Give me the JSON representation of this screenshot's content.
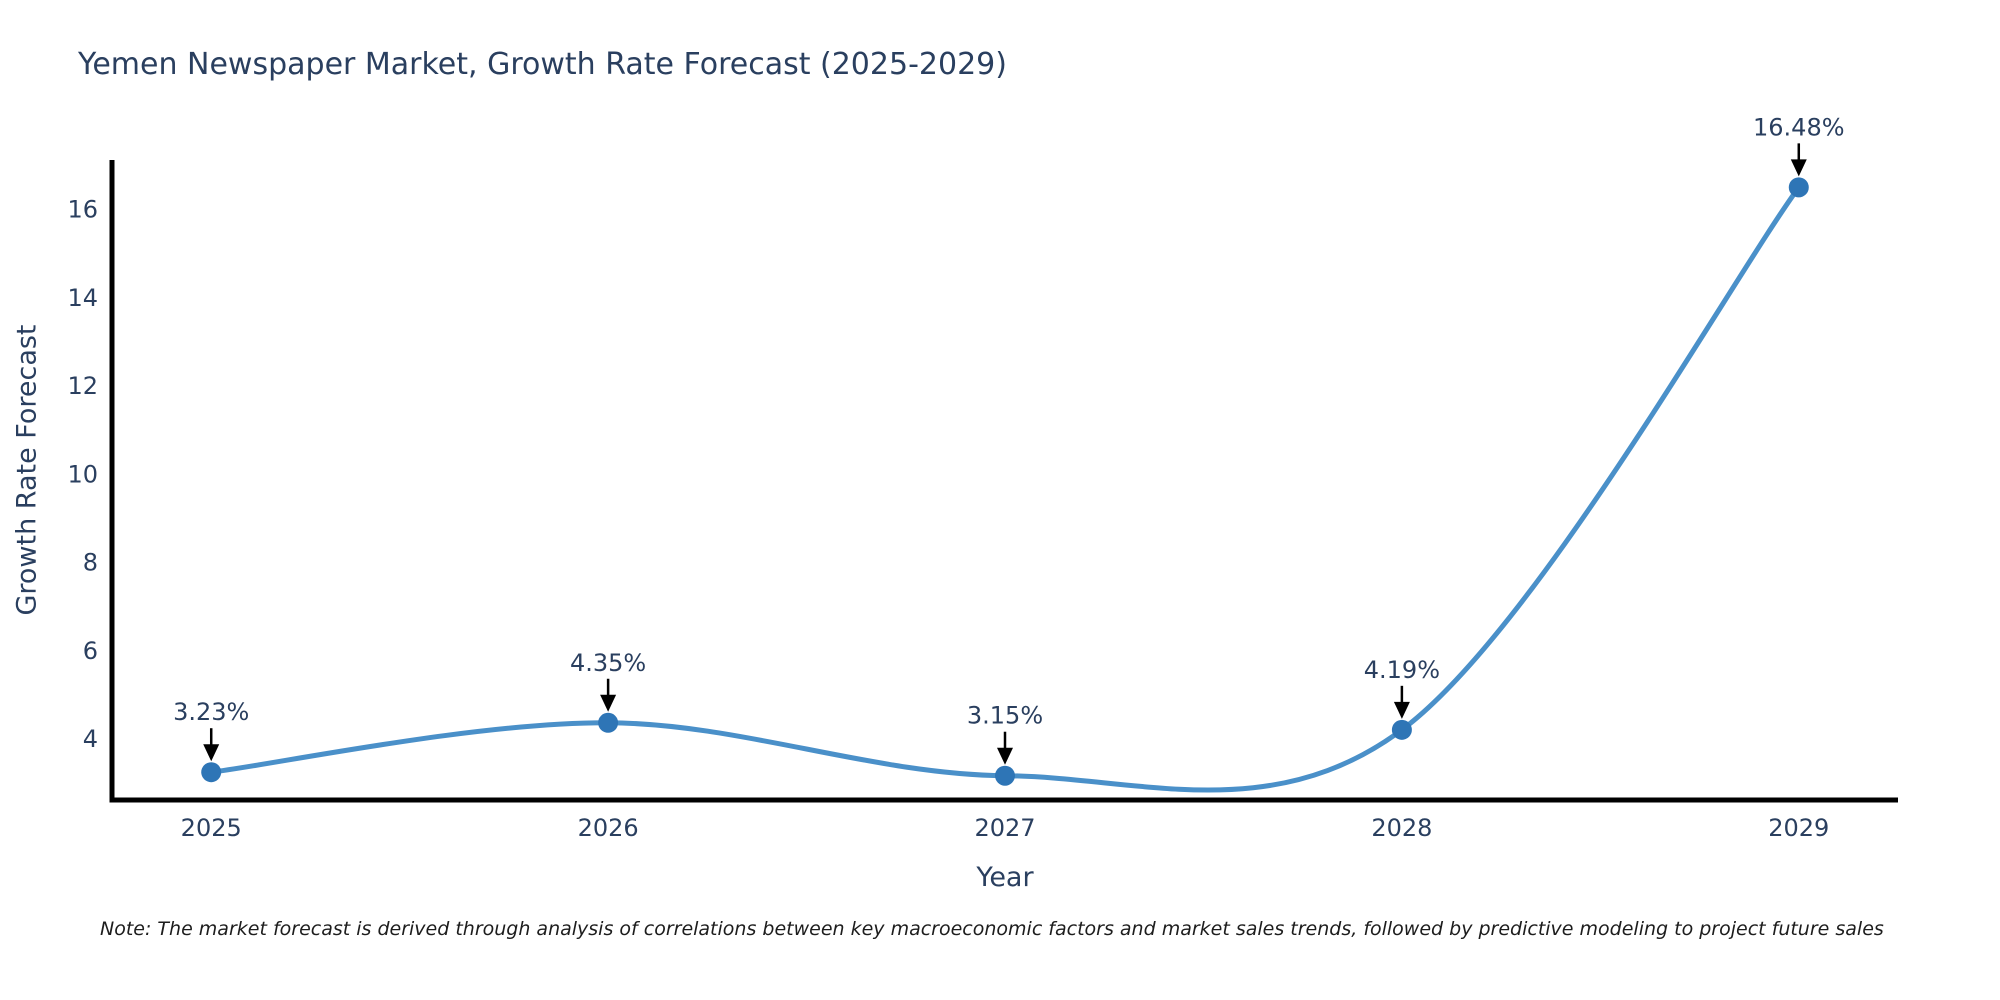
{
  "chart_data": {
    "type": "line",
    "title": "Yemen Newspaper Market, Growth Rate Forecast (2025-2029)",
    "xlabel": "Year",
    "ylabel": "Growth Rate Forecast",
    "x": [
      2025,
      2026,
      2027,
      2028,
      2029
    ],
    "values": [
      3.23,
      4.35,
      3.15,
      4.19,
      16.48
    ],
    "point_labels": [
      "3.23%",
      "4.35%",
      "3.15%",
      "4.19%",
      "16.48%"
    ],
    "x_tick_labels": [
      "2025",
      "2026",
      "2027",
      "2028",
      "2029"
    ],
    "y_ticks": [
      4,
      6,
      8,
      10,
      12,
      14,
      16
    ],
    "xlim": [
      2024.75,
      2029.25
    ],
    "ylim": [
      2.6,
      17.1
    ],
    "grid": false,
    "legend": "none",
    "line_shape": "spline",
    "annotations_have_arrows": true,
    "colors": {
      "line": "#4a90c9",
      "marker": "#2e75b6",
      "axis": "#000000",
      "text": "#2a3f5f",
      "arrow": "#000000"
    }
  },
  "note": {
    "text": "Note: The market forecast is derived through analysis of correlations between key macroeconomic factors and market sales trends, followed by predictive modeling to project future sales"
  }
}
